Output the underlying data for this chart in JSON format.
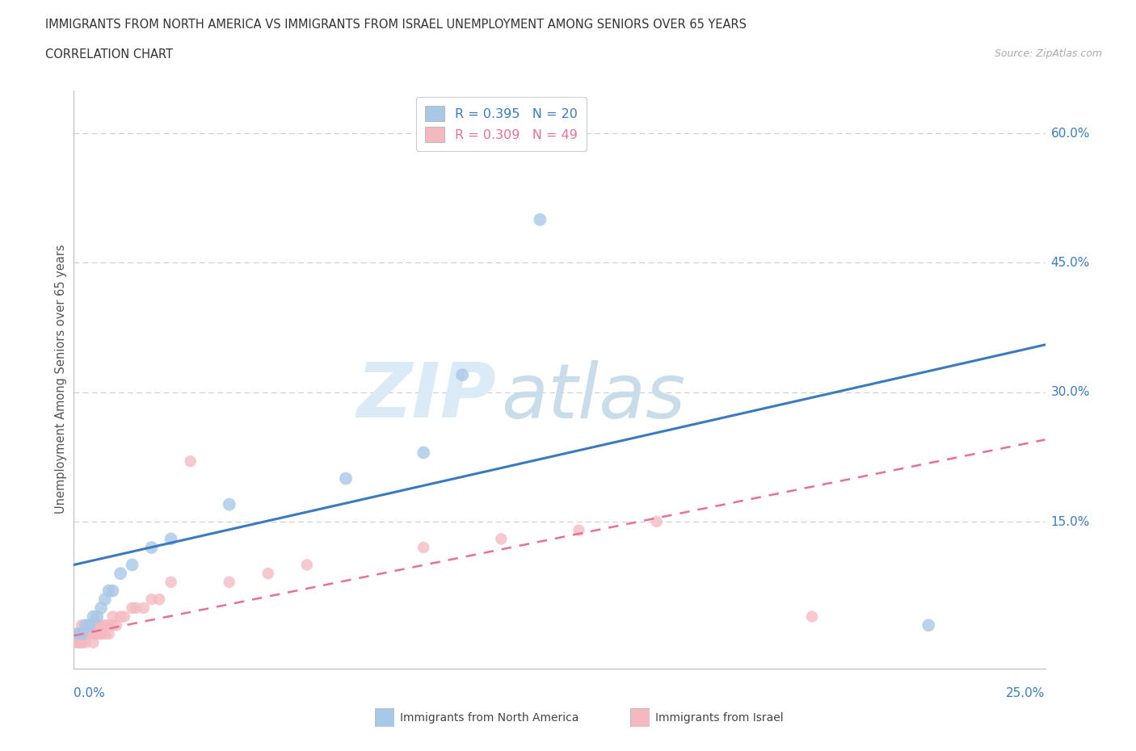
{
  "title_line1": "IMMIGRANTS FROM NORTH AMERICA VS IMMIGRANTS FROM ISRAEL UNEMPLOYMENT AMONG SENIORS OVER 65 YEARS",
  "title_line2": "CORRELATION CHART",
  "source": "Source: ZipAtlas.com",
  "xlabel_bottom_left": "0.0%",
  "xlabel_bottom_right": "25.0%",
  "ylabel": "Unemployment Among Seniors over 65 years",
  "ytick_labels": [
    "60.0%",
    "45.0%",
    "30.0%",
    "15.0%"
  ],
  "ytick_values": [
    0.6,
    0.45,
    0.3,
    0.15
  ],
  "xmin": 0.0,
  "xmax": 0.25,
  "ymin": -0.02,
  "ymax": 0.65,
  "R_north_america": 0.395,
  "N_north_america": 20,
  "R_israel": 0.309,
  "N_israel": 49,
  "color_north_america": "#a8c8e8",
  "color_israel": "#f4b8c0",
  "trendline_north_america_color": "#3a7abf",
  "trendline_israel_color": "#e87090",
  "watermark_zip_color": "#d8e8f4",
  "watermark_atlas_color": "#c8d8e8",
  "north_america_x": [
    0.001,
    0.002,
    0.003,
    0.004,
    0.005,
    0.006,
    0.007,
    0.008,
    0.009,
    0.01,
    0.012,
    0.015,
    0.02,
    0.025,
    0.04,
    0.07,
    0.09,
    0.1,
    0.12,
    0.22
  ],
  "north_america_y": [
    0.02,
    0.02,
    0.03,
    0.03,
    0.04,
    0.04,
    0.05,
    0.06,
    0.07,
    0.07,
    0.09,
    0.1,
    0.12,
    0.13,
    0.17,
    0.2,
    0.23,
    0.32,
    0.5,
    0.03
  ],
  "israel_x": [
    0.001,
    0.001,
    0.001,
    0.001,
    0.001,
    0.002,
    0.002,
    0.002,
    0.002,
    0.002,
    0.003,
    0.003,
    0.003,
    0.003,
    0.004,
    0.004,
    0.004,
    0.005,
    0.005,
    0.005,
    0.006,
    0.006,
    0.007,
    0.007,
    0.007,
    0.008,
    0.008,
    0.009,
    0.009,
    0.01,
    0.01,
    0.011,
    0.012,
    0.013,
    0.015,
    0.016,
    0.018,
    0.02,
    0.022,
    0.025,
    0.03,
    0.04,
    0.05,
    0.06,
    0.09,
    0.11,
    0.13,
    0.15,
    0.19
  ],
  "israel_y": [
    0.01,
    0.01,
    0.01,
    0.02,
    0.02,
    0.01,
    0.01,
    0.02,
    0.02,
    0.03,
    0.01,
    0.02,
    0.02,
    0.03,
    0.02,
    0.02,
    0.03,
    0.01,
    0.02,
    0.03,
    0.02,
    0.03,
    0.02,
    0.02,
    0.03,
    0.02,
    0.03,
    0.02,
    0.03,
    0.03,
    0.04,
    0.03,
    0.04,
    0.04,
    0.05,
    0.05,
    0.05,
    0.06,
    0.06,
    0.08,
    0.22,
    0.08,
    0.09,
    0.1,
    0.12,
    0.13,
    0.14,
    0.15,
    0.04
  ],
  "trendline_na_x0": 0.0,
  "trendline_na_y0": 0.1,
  "trendline_na_x1": 0.25,
  "trendline_na_y1": 0.355,
  "trendline_isr_x0": 0.0,
  "trendline_isr_y0": 0.018,
  "trendline_isr_x1": 0.25,
  "trendline_isr_y1": 0.245
}
